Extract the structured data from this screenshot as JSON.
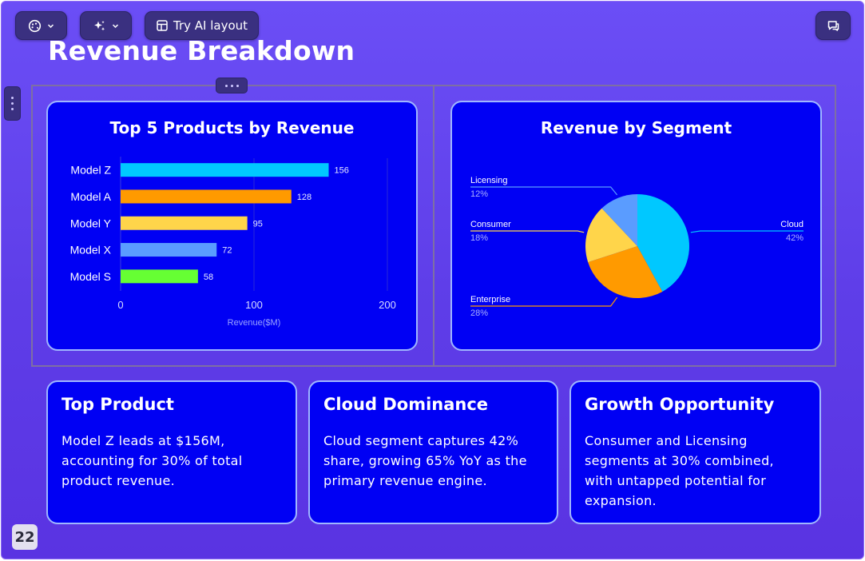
{
  "toolbar": {
    "theme_icon": "palette-icon",
    "ai_icon": "sparkles-icon",
    "layout_label": "Try AI layout",
    "layout_icon": "layout-icon",
    "comments_icon": "comment-icon"
  },
  "slide": {
    "title": "Revenue Breakdown",
    "page_number": "22"
  },
  "colors": {
    "background": "#6b4ef6",
    "card": "#0000f4",
    "card_border": "#9fb6ff"
  },
  "chart_data": [
    {
      "type": "bar",
      "orientation": "horizontal",
      "title": "Top 5 Products by Revenue",
      "xlabel": "Revenue($M)",
      "ylabel": "",
      "categories": [
        "Model Z",
        "Model A",
        "Model Y",
        "Model X",
        "Model S"
      ],
      "values": [
        156,
        128,
        95,
        72,
        58
      ],
      "colors": [
        "#00c8ff",
        "#ff9a00",
        "#ffd54a",
        "#5a9cff",
        "#66ff33"
      ],
      "xlim": [
        0,
        200
      ],
      "xticks": [
        0,
        100,
        200
      ],
      "data_labels": true,
      "grid": true
    },
    {
      "type": "pie",
      "title": "Revenue by Segment",
      "slices": [
        {
          "label": "Cloud",
          "value": 42,
          "text": "42%",
          "color": "#00c8ff"
        },
        {
          "label": "Enterprise",
          "value": 28,
          "text": "28%",
          "color": "#ff9a00"
        },
        {
          "label": "Consumer",
          "value": 18,
          "text": "18%",
          "color": "#ffd54a"
        },
        {
          "label": "Licensing",
          "value": 12,
          "text": "12%",
          "color": "#5a9cff"
        }
      ],
      "legend": "leader-line labels"
    }
  ],
  "insights": [
    {
      "title": "Top Product",
      "body": "Model Z leads at $156M, accounting for 30% of total product revenue."
    },
    {
      "title": "Cloud Dominance",
      "body": "Cloud segment captures 42% share, growing 65% YoY as the primary revenue engine."
    },
    {
      "title": "Growth Opportunity",
      "body": "Consumer and Licensing segments at 30% combined, with untapped potential for expansion."
    }
  ]
}
